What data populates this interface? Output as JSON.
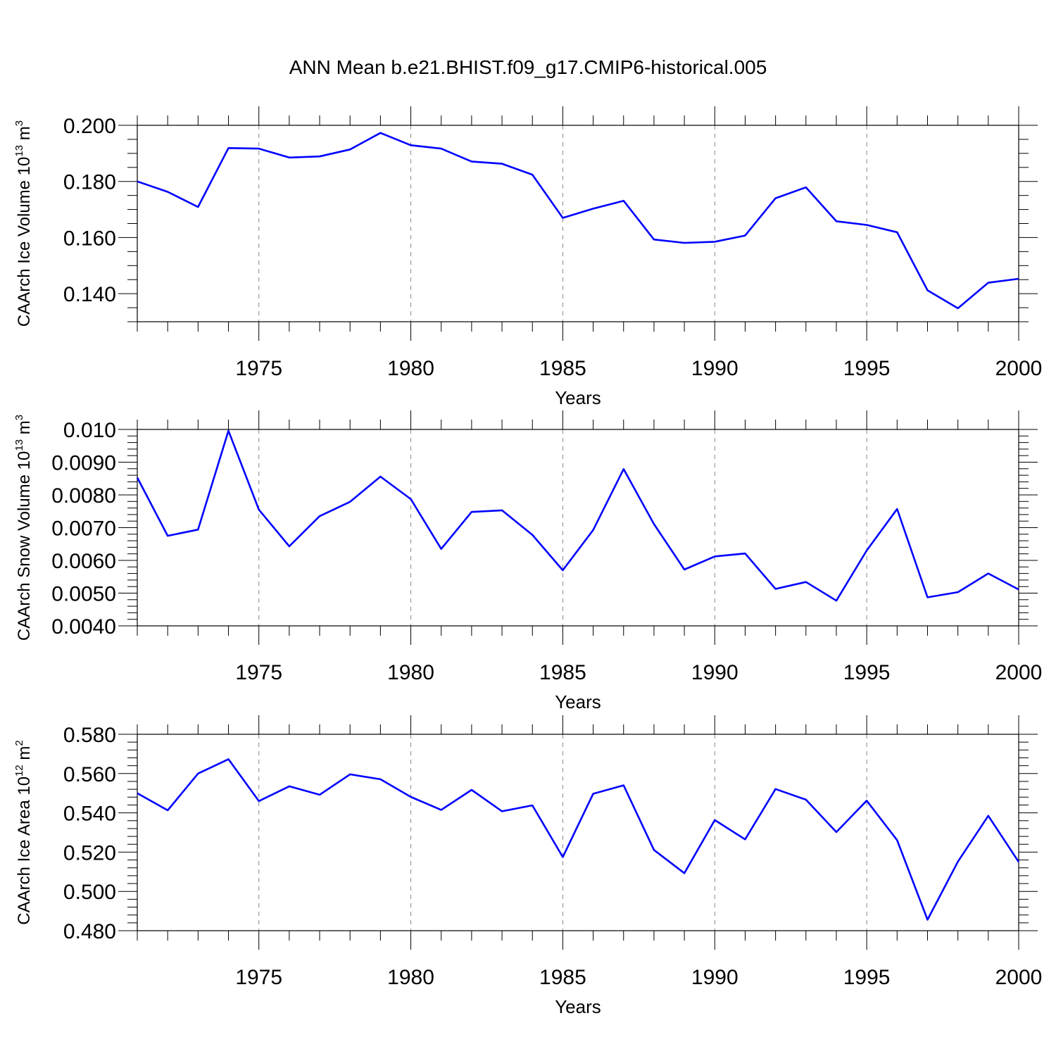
{
  "figure_title": "ANN Mean b.e21.BHIST.f09_g17.CMIP6-historical.005",
  "colors": {
    "series": "#0000ff",
    "axis": "#000000",
    "grid": "#888888"
  },
  "chart_data": [
    {
      "type": "line",
      "ylabel_main": "CAArch Ice Volume 10",
      "ylabel_exp": "13",
      "ylabel_unit": " m",
      "ylabel_unit_exp": "3",
      "xlabel": "Years",
      "xlim": [
        1971,
        2000
      ],
      "ylim": [
        0.13,
        0.2
      ],
      "yticks": [
        0.14,
        0.16,
        0.18,
        0.2
      ],
      "ytick_labels": [
        "0.140",
        "0.160",
        "0.180",
        "0.200"
      ],
      "yminor_step": 0.005,
      "xticks": [
        1975,
        1980,
        1985,
        1990,
        1995,
        2000
      ],
      "xtick_labels": [
        "1975",
        "1980",
        "1985",
        "1990",
        "1995",
        "2000"
      ],
      "x": [
        1971,
        1972,
        1973,
        1974,
        1975,
        1976,
        1977,
        1978,
        1979,
        1980,
        1981,
        1982,
        1983,
        1984,
        1985,
        1986,
        1987,
        1988,
        1989,
        1990,
        1991,
        1992,
        1993,
        1994,
        1995,
        1996,
        1997,
        1998,
        1999,
        2000
      ],
      "values": [
        0.18,
        0.1763,
        0.1709,
        0.1919,
        0.1917,
        0.1885,
        0.1889,
        0.1914,
        0.1973,
        0.1929,
        0.1917,
        0.1871,
        0.1863,
        0.1824,
        0.167,
        0.1703,
        0.1731,
        0.1593,
        0.1581,
        0.1585,
        0.1607,
        0.174,
        0.1779,
        0.1658,
        0.1645,
        0.1619,
        0.1412,
        0.1348,
        0.1439,
        0.1453
      ]
    },
    {
      "type": "line",
      "ylabel_main": "CAArch Snow Volume 10",
      "ylabel_exp": "13",
      "ylabel_unit": " m",
      "ylabel_unit_exp": "3",
      "xlabel": "Years",
      "xlim": [
        1971,
        2000
      ],
      "ylim": [
        0.004,
        0.01
      ],
      "yticks": [
        0.004,
        0.005,
        0.006,
        0.007,
        0.008,
        0.009,
        0.01
      ],
      "ytick_labels": [
        "0.0040",
        "0.0050",
        "0.0060",
        "0.0070",
        "0.0080",
        "0.0090",
        "0.010"
      ],
      "yminor_step": 0.0002,
      "xticks": [
        1975,
        1980,
        1985,
        1990,
        1995,
        2000
      ],
      "xtick_labels": [
        "1975",
        "1980",
        "1985",
        "1990",
        "1995",
        "2000"
      ],
      "x": [
        1971,
        1972,
        1973,
        1974,
        1975,
        1976,
        1977,
        1978,
        1979,
        1980,
        1981,
        1982,
        1983,
        1984,
        1985,
        1986,
        1987,
        1988,
        1989,
        1990,
        1991,
        1992,
        1993,
        1994,
        1995,
        1996,
        1997,
        1998,
        1999,
        2000
      ],
      "values": [
        0.00853,
        0.00675,
        0.00694,
        0.00996,
        0.00755,
        0.00643,
        0.00735,
        0.00779,
        0.00856,
        0.00787,
        0.00635,
        0.00748,
        0.00753,
        0.00678,
        0.0057,
        0.00693,
        0.00879,
        0.00711,
        0.00572,
        0.00612,
        0.00621,
        0.00513,
        0.00534,
        0.00477,
        0.0063,
        0.00757,
        0.00487,
        0.00503,
        0.0056,
        0.00511
      ]
    },
    {
      "type": "line",
      "ylabel_main": "CAArch Ice Area 10",
      "ylabel_exp": "12",
      "ylabel_unit": " m",
      "ylabel_unit_exp": "2",
      "xlabel": "Years",
      "xlim": [
        1971,
        2000
      ],
      "ylim": [
        0.48,
        0.58
      ],
      "yticks": [
        0.48,
        0.5,
        0.52,
        0.54,
        0.56,
        0.58
      ],
      "ytick_labels": [
        "0.480",
        "0.500",
        "0.520",
        "0.540",
        "0.560",
        "0.580"
      ],
      "yminor_step": 0.004,
      "xticks": [
        1975,
        1980,
        1985,
        1990,
        1995,
        2000
      ],
      "xtick_labels": [
        "1975",
        "1980",
        "1985",
        "1990",
        "1995",
        "2000"
      ],
      "x": [
        1971,
        1972,
        1973,
        1974,
        1975,
        1976,
        1977,
        1978,
        1979,
        1980,
        1981,
        1982,
        1983,
        1984,
        1985,
        1986,
        1987,
        1988,
        1989,
        1990,
        1991,
        1992,
        1993,
        1994,
        1995,
        1996,
        1997,
        1998,
        1999,
        2000
      ],
      "values": [
        0.55,
        0.5413,
        0.56,
        0.5673,
        0.546,
        0.5535,
        0.5492,
        0.5596,
        0.5571,
        0.5481,
        0.5415,
        0.5517,
        0.5408,
        0.5438,
        0.5175,
        0.5497,
        0.554,
        0.5211,
        0.5093,
        0.5363,
        0.5265,
        0.5521,
        0.5467,
        0.5302,
        0.5462,
        0.5261,
        0.4856,
        0.5152,
        0.5385,
        0.515
      ]
    }
  ]
}
